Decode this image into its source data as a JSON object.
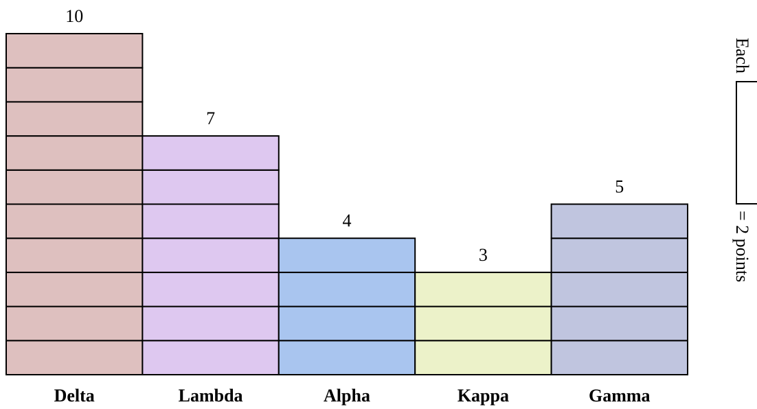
{
  "chart_data": {
    "type": "bar",
    "style": "unit-block pictograph",
    "categories": [
      "Delta",
      "Lambda",
      "Alpha",
      "Kappa",
      "Gamma"
    ],
    "values": [
      10,
      7,
      4,
      3,
      5
    ],
    "colors": [
      "#dec0bf",
      "#dec8f0",
      "#a9c5ef",
      "#ecf2c9",
      "#c0c5df"
    ],
    "ylim": [
      0,
      10
    ],
    "grid": false,
    "legend": {
      "position": "right",
      "prefix": "Each",
      "suffix": "= 2 points"
    }
  }
}
